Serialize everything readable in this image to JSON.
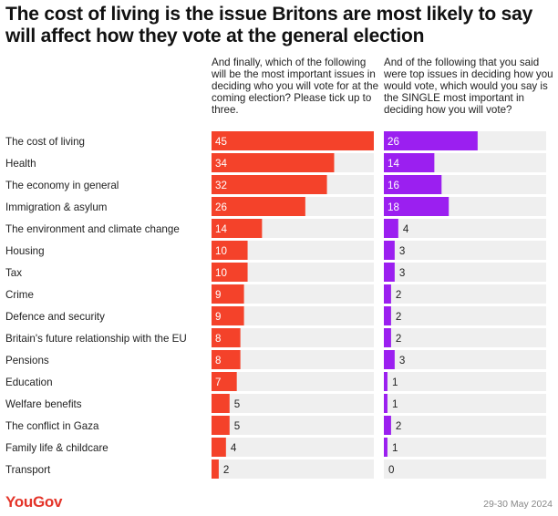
{
  "title": "The cost of living is the issue Britons are most likely to say will affect how they vote at the general election",
  "footer": {
    "brand": "YouGov",
    "date": "29-30 May 2024"
  },
  "colors": {
    "left_bar": "#f4422a",
    "right_bar": "#9b1ff0",
    "track": "#efefef"
  },
  "chart_data": {
    "type": "bar",
    "orientation": "horizontal",
    "title": "The cost of living is the issue Britons are most likely to say will affect how they vote at the general election",
    "categories": [
      "The cost of living",
      "Health",
      "The economy in general",
      "Immigration & asylum",
      "The environment and climate change",
      "Housing",
      "Tax",
      "Crime",
      "Defence and security",
      "Britain's future relationship with the EU",
      "Pensions",
      "Education",
      "Welfare benefits",
      "The conflict in Gaza",
      "Family life & childcare",
      "Transport"
    ],
    "series": [
      {
        "name": "And finally, which of the following will be the most important issues in deciding who you will vote for at the coming election? Please tick up to three.",
        "values": [
          45,
          34,
          32,
          26,
          14,
          10,
          10,
          9,
          9,
          8,
          8,
          7,
          5,
          5,
          4,
          2
        ],
        "xlim": [
          0,
          45
        ]
      },
      {
        "name": "And of the following that you said were top issues in deciding how you would vote, which would you say is the SINGLE most important in deciding how you will vote?",
        "values": [
          26,
          14,
          16,
          18,
          4,
          3,
          3,
          2,
          2,
          2,
          3,
          1,
          1,
          2,
          1,
          0
        ],
        "xlim": [
          0,
          45
        ]
      }
    ]
  }
}
